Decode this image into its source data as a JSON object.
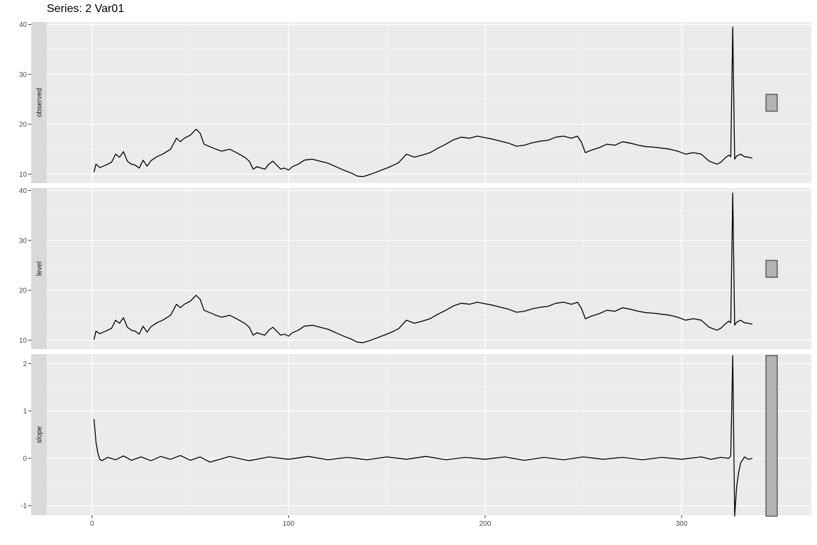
{
  "chart_data": {
    "type": "line",
    "title": "Series: 2 Var01",
    "xlabel": "",
    "ylabel": "",
    "xlim": [
      -23,
      366
    ],
    "x_ticks": [
      0,
      100,
      200,
      300
    ],
    "grid": true,
    "panels": [
      {
        "name": "observed",
        "ylim": [
          8.2,
          40.5
        ],
        "y_ticks": [
          10,
          20,
          30,
          40
        ],
        "range_bar": [
          22.6,
          26.0
        ],
        "x": [
          1,
          2,
          4,
          7,
          10,
          12,
          14,
          16,
          18,
          20,
          22,
          24,
          26,
          28,
          30,
          33,
          36,
          40,
          43,
          45,
          47,
          50,
          53,
          55,
          57,
          60,
          63,
          66,
          70,
          74,
          78,
          80,
          82,
          84,
          86,
          88,
          90,
          92,
          94,
          96,
          98,
          100,
          102,
          105,
          108,
          112,
          116,
          120,
          124,
          128,
          132,
          135,
          138,
          142,
          146,
          150,
          153,
          156,
          160,
          164,
          168,
          172,
          176,
          180,
          184,
          188,
          192,
          196,
          200,
          204,
          208,
          212,
          216,
          220,
          224,
          228,
          232,
          236,
          240,
          244,
          247,
          249,
          251,
          254,
          258,
          262,
          266,
          270,
          274,
          278,
          282,
          286,
          290,
          294,
          298,
          302,
          306,
          310,
          314,
          318,
          320,
          322,
          324,
          325,
          326,
          327,
          328,
          330,
          332,
          334,
          336
        ],
        "values": [
          10.4,
          12.0,
          11.3,
          11.8,
          12.4,
          14.0,
          13.4,
          14.5,
          12.6,
          12.0,
          11.8,
          11.2,
          12.8,
          11.6,
          12.7,
          13.5,
          14.0,
          15.0,
          17.2,
          16.5,
          17.2,
          17.8,
          19.0,
          18.2,
          16.0,
          15.5,
          15.0,
          14.6,
          15.0,
          14.2,
          13.3,
          12.6,
          11.0,
          11.5,
          11.2,
          11.0,
          12.0,
          12.6,
          11.8,
          11.0,
          11.2,
          10.8,
          11.5,
          12.0,
          12.8,
          13.0,
          12.6,
          12.2,
          11.5,
          10.8,
          10.2,
          9.6,
          9.5,
          10.0,
          10.6,
          11.2,
          11.7,
          12.3,
          14.0,
          13.4,
          13.8,
          14.3,
          15.2,
          16.0,
          16.9,
          17.4,
          17.2,
          17.6,
          17.3,
          17.0,
          16.6,
          16.2,
          15.6,
          15.8,
          16.3,
          16.6,
          16.8,
          17.4,
          17.6,
          17.2,
          17.6,
          16.4,
          14.3,
          14.8,
          15.3,
          16.0,
          15.8,
          16.5,
          16.2,
          15.8,
          15.5,
          15.4,
          15.2,
          15.0,
          14.6,
          14.0,
          14.3,
          14.0,
          12.6,
          12.0,
          12.4,
          13.2,
          13.8,
          13.5,
          39.5,
          13.0,
          13.6,
          14.0,
          13.5,
          13.4,
          13.2
        ]
      },
      {
        "name": "level",
        "ylim": [
          8.2,
          40.5
        ],
        "y_ticks": [
          10,
          20,
          30,
          40
        ],
        "range_bar": [
          22.6,
          26.0
        ],
        "x": [
          1,
          2,
          4,
          7,
          10,
          12,
          14,
          16,
          18,
          20,
          22,
          24,
          26,
          28,
          30,
          33,
          36,
          40,
          43,
          45,
          47,
          50,
          53,
          55,
          57,
          60,
          63,
          66,
          70,
          74,
          78,
          80,
          82,
          84,
          86,
          88,
          90,
          92,
          94,
          96,
          98,
          100,
          102,
          105,
          108,
          112,
          116,
          120,
          124,
          128,
          132,
          135,
          138,
          142,
          146,
          150,
          153,
          156,
          160,
          164,
          168,
          172,
          176,
          180,
          184,
          188,
          192,
          196,
          200,
          204,
          208,
          212,
          216,
          220,
          224,
          228,
          232,
          236,
          240,
          244,
          247,
          249,
          251,
          254,
          258,
          262,
          266,
          270,
          274,
          278,
          282,
          286,
          290,
          294,
          298,
          302,
          306,
          310,
          314,
          318,
          320,
          322,
          324,
          325,
          326,
          327,
          328,
          330,
          332,
          334,
          336
        ],
        "values": [
          10.1,
          11.8,
          11.3,
          11.8,
          12.4,
          14.0,
          13.4,
          14.5,
          12.6,
          12.0,
          11.8,
          11.2,
          12.8,
          11.6,
          12.7,
          13.5,
          14.0,
          15.0,
          17.2,
          16.5,
          17.2,
          17.8,
          19.0,
          18.2,
          16.0,
          15.5,
          15.0,
          14.6,
          15.0,
          14.2,
          13.3,
          12.6,
          11.0,
          11.5,
          11.2,
          11.0,
          12.0,
          12.6,
          11.8,
          11.0,
          11.2,
          10.8,
          11.5,
          12.0,
          12.8,
          13.0,
          12.6,
          12.2,
          11.5,
          10.8,
          10.2,
          9.6,
          9.5,
          10.0,
          10.6,
          11.2,
          11.7,
          12.3,
          14.0,
          13.4,
          13.8,
          14.3,
          15.2,
          16.0,
          16.9,
          17.4,
          17.2,
          17.6,
          17.3,
          17.0,
          16.6,
          16.2,
          15.6,
          15.8,
          16.3,
          16.6,
          16.8,
          17.4,
          17.6,
          17.2,
          17.6,
          16.4,
          14.3,
          14.8,
          15.3,
          16.0,
          15.8,
          16.5,
          16.2,
          15.8,
          15.5,
          15.4,
          15.2,
          15.0,
          14.6,
          14.0,
          14.3,
          14.0,
          12.6,
          12.0,
          12.4,
          13.2,
          13.8,
          13.5,
          39.5,
          13.0,
          13.6,
          14.0,
          13.5,
          13.4,
          13.2
        ]
      },
      {
        "name": "slope",
        "ylim": [
          -1.2,
          2.2
        ],
        "y_ticks": [
          -1,
          0,
          1,
          2
        ],
        "range_bar": [
          -1.22,
          2.17
        ],
        "x": [
          1,
          2,
          3,
          4,
          5,
          8,
          12,
          16,
          20,
          25,
          30,
          35,
          40,
          45,
          50,
          55,
          60,
          70,
          80,
          90,
          100,
          110,
          120,
          130,
          140,
          150,
          160,
          170,
          180,
          190,
          200,
          210,
          220,
          230,
          240,
          250,
          260,
          270,
          280,
          290,
          300,
          310,
          315,
          320,
          324,
          325,
          326,
          327,
          328,
          329,
          330,
          332,
          334,
          336
        ],
        "values": [
          0.83,
          0.35,
          0.1,
          -0.02,
          -0.05,
          0.02,
          -0.03,
          0.05,
          -0.04,
          0.03,
          -0.05,
          0.04,
          -0.02,
          0.06,
          -0.04,
          0.03,
          -0.08,
          0.04,
          -0.05,
          0.03,
          -0.02,
          0.04,
          -0.03,
          0.02,
          -0.03,
          0.03,
          -0.02,
          0.04,
          -0.03,
          0.02,
          -0.02,
          0.03,
          -0.04,
          0.02,
          -0.03,
          0.03,
          -0.02,
          0.02,
          -0.03,
          0.02,
          -0.02,
          0.03,
          -0.02,
          0.02,
          0.0,
          0.05,
          2.17,
          -1.22,
          -0.6,
          -0.3,
          -0.1,
          0.03,
          -0.02,
          0.0
        ]
      }
    ]
  }
}
